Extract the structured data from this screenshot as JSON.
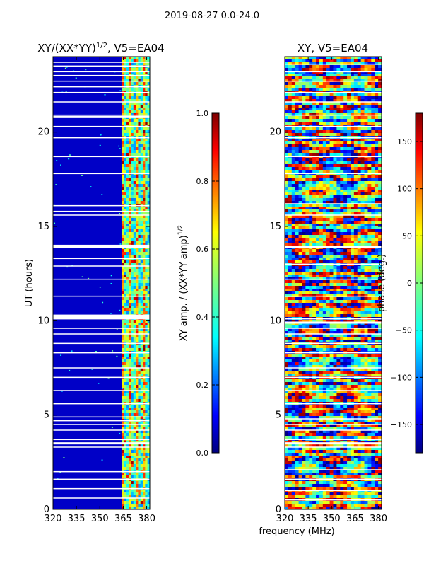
{
  "suptitle": "2019-08-27 0.0-24.0",
  "colors": {
    "jet": [
      "#00007f",
      "#0000ff",
      "#007fff",
      "#00ffff",
      "#7fff7f",
      "#ffff00",
      "#ff7f00",
      "#ff0000",
      "#7f0000"
    ]
  },
  "chart_data": [
    {
      "type": "heatmap",
      "name": "amplitude",
      "title": "XY/(XX*YY)",
      "title_exponent": "1/2",
      "title_suffix": ", V5=EA04",
      "xlabel": "",
      "ylabel": "UT (hours)",
      "xlim": [
        320,
        382
      ],
      "ylim": [
        0,
        24
      ],
      "xticks": [
        320,
        335,
        350,
        365,
        380
      ],
      "yticks": [
        0,
        5,
        10,
        15,
        20
      ],
      "band_start_mhz": 364,
      "value_range": [
        0.0,
        1.0
      ],
      "background_value": 0.07,
      "flagged_hours": [
        0.6,
        1.1,
        1.6,
        2.0,
        3.3,
        3.5,
        3.7,
        4.2,
        4.5,
        4.7,
        4.9,
        5.6,
        6.3,
        7.0,
        7.5,
        8.3,
        8.8,
        9.3,
        9.6,
        10.1,
        10.2,
        10.3,
        11.3,
        12.2,
        12.9,
        13.3,
        13.9,
        14.0,
        15.6,
        15.8,
        16.1,
        17.8,
        18.7,
        19.7,
        20.3,
        20.8,
        20.9,
        21.6,
        22.1,
        22.4,
        22.7,
        23.0,
        23.2,
        23.5,
        23.7
      ]
    },
    {
      "type": "heatmap",
      "name": "phase",
      "title": "XY, V5=EA04",
      "xlabel": "",
      "ylabel": "",
      "xlim": [
        320,
        382
      ],
      "ylim": [
        0,
        24
      ],
      "xticks": [
        320,
        335,
        350,
        365,
        380
      ],
      "yticks": [
        0,
        5,
        10,
        15,
        20
      ],
      "value_range": [
        -180,
        180
      ],
      "flagged_hours": [
        0.5,
        1.0,
        1.6,
        2.1,
        3.3,
        3.5,
        3.7,
        4.2,
        4.5,
        4.8,
        5.6,
        6.3,
        7.0,
        7.5,
        8.3,
        8.8,
        9.3,
        9.6,
        9.9,
        10.1,
        11.3,
        12.2,
        13.0,
        13.9,
        15.6,
        16.2,
        17.8,
        18.7,
        19.7,
        20.3,
        20.9,
        21.6,
        22.1,
        22.7,
        23.2,
        23.6
      ]
    }
  ],
  "colorbars": [
    {
      "name": "amplitude-colorbar",
      "label": "XY amp. / (XX*YY amp)",
      "label_exponent": "1/2",
      "range": [
        0.0,
        1.0
      ],
      "ticks": [
        0.0,
        0.2,
        0.4,
        0.6,
        0.8,
        1.0
      ],
      "tick_labels": [
        "0.0",
        "0.2",
        "0.4",
        "0.6",
        "0.8",
        "1.0"
      ]
    },
    {
      "name": "phase-colorbar",
      "label": "phase (deg.)",
      "range": [
        -180,
        180
      ],
      "ticks": [
        -150,
        -100,
        -50,
        0,
        50,
        100,
        150
      ],
      "tick_labels": [
        "−150",
        "−100",
        "−50",
        "0",
        "50",
        "100",
        "150"
      ]
    }
  ],
  "shared_xlabel": "frequency (MHz)"
}
